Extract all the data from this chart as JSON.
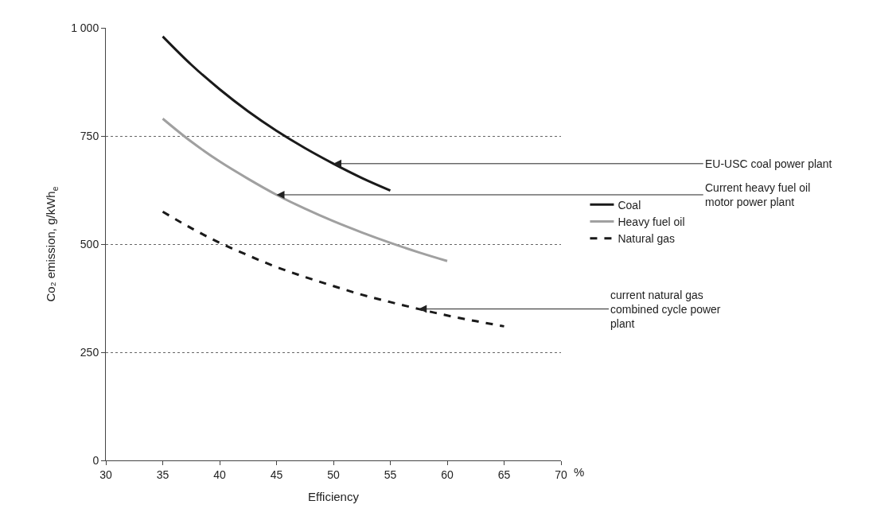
{
  "chart_data": {
    "type": "line",
    "xlabel": "Efficiency",
    "ylabel": "Co₂ emission, g/kWh$_{e}$",
    "xlim": [
      30,
      70
    ],
    "xticks": [
      30,
      35,
      40,
      45,
      50,
      55,
      60,
      65,
      70
    ],
    "ylim": [
      0,
      1000
    ],
    "yticks": [
      0,
      250,
      500,
      750,
      {
        "value": 1000,
        "label": "1 000"
      }
    ],
    "grid": "y",
    "legend": "right",
    "marker": "none",
    "series": [
      {
        "name": "Coal",
        "color": "#1a1a1a",
        "line_style": "solid",
        "x": [
          35,
          37.5,
          40,
          42.5,
          45,
          47.5,
          50,
          52.5,
          55
        ],
        "values": [
          980,
          915,
          858,
          807,
          762,
          722,
          686,
          653,
          624
        ]
      },
      {
        "name": "Heavy fuel oil",
        "color": "#a0a0a0",
        "line_style": "solid",
        "x": [
          35,
          37.5,
          40,
          42.5,
          45,
          47.5,
          50,
          52.5,
          55,
          57.5,
          60
        ],
        "values": [
          790,
          737,
          691,
          651,
          614,
          582,
          553,
          527,
          503,
          481,
          461
        ]
      },
      {
        "name": "Natural gas",
        "color": "#1a1a1a",
        "line_style": "dashed",
        "x": [
          35,
          37.5,
          40,
          42.5,
          45,
          47.5,
          50,
          52.5,
          55,
          57.5,
          60,
          62.5,
          65
        ],
        "values": [
          575,
          537,
          503,
          474,
          447,
          424,
          403,
          383,
          366,
          350,
          335,
          322,
          310
        ]
      }
    ],
    "annotations": [
      {
        "text": "EU-USC coal power plant",
        "x": 50,
        "y": 686
      },
      {
        "text": "Current heavy fuel oil\nmotor power plant",
        "x": 45,
        "y": 614
      },
      {
        "text": "current natural gas\ncombined cycle power\nplant",
        "x": 57.5,
        "y": 350
      },
      "%"
    ]
  }
}
